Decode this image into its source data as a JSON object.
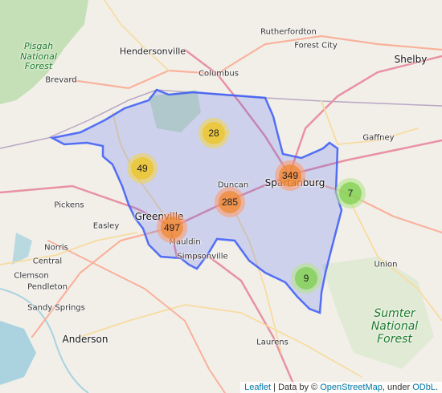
{
  "colors": {
    "land": "#f2efe9",
    "forest_fill": "#b5dba6",
    "region_stroke": "#3b5bf7",
    "region_fill": "#3b5bf7",
    "road_primary": "#e892a2",
    "road_trunk": "#f9b29c",
    "road_secondary": "#f7dca0",
    "water": "#aad3df"
  },
  "places": {
    "rutherfordton": "Rutherfordton",
    "forest_city": "Forest City",
    "hendersonville": "Hendersonville",
    "shelby": "Shelby",
    "brevard": "Brevard",
    "columbus": "Columbus",
    "gaffney": "Gaffney",
    "duncan": "Duncan",
    "spartanburg": "Spartanburg",
    "greenville": "Greenville",
    "pickens": "Pickens",
    "easley": "Easley",
    "mauldin": "Mauldin",
    "simpsonville": "Simpsonville",
    "norris": "Norris",
    "central": "Central",
    "clemson": "Clemson",
    "pendleton": "Pendleton",
    "union": "Union",
    "sandy_springs": "Sandy Springs",
    "anderson": "Anderson",
    "laurens": "Laurens"
  },
  "forests": {
    "pisgah": "Pisgah\nNational\nForest",
    "sumter": "Sumter\nNational\nForest"
  },
  "clusters": [
    {
      "id": "c28",
      "count": "28",
      "size": "medium"
    },
    {
      "id": "c49",
      "count": "49",
      "size": "medium"
    },
    {
      "id": "c349",
      "count": "349",
      "size": "large"
    },
    {
      "id": "c285",
      "count": "285",
      "size": "large"
    },
    {
      "id": "c497",
      "count": "497",
      "size": "large"
    },
    {
      "id": "c7",
      "count": "7",
      "size": "small"
    },
    {
      "id": "c9",
      "count": "9",
      "size": "small"
    }
  ],
  "attribution": {
    "leaflet": "Leaflet",
    "sep": " | Data by © ",
    "osm": "OpenStreetMap",
    "under": ", under ",
    "odbl": "ODbL",
    "end": "."
  }
}
